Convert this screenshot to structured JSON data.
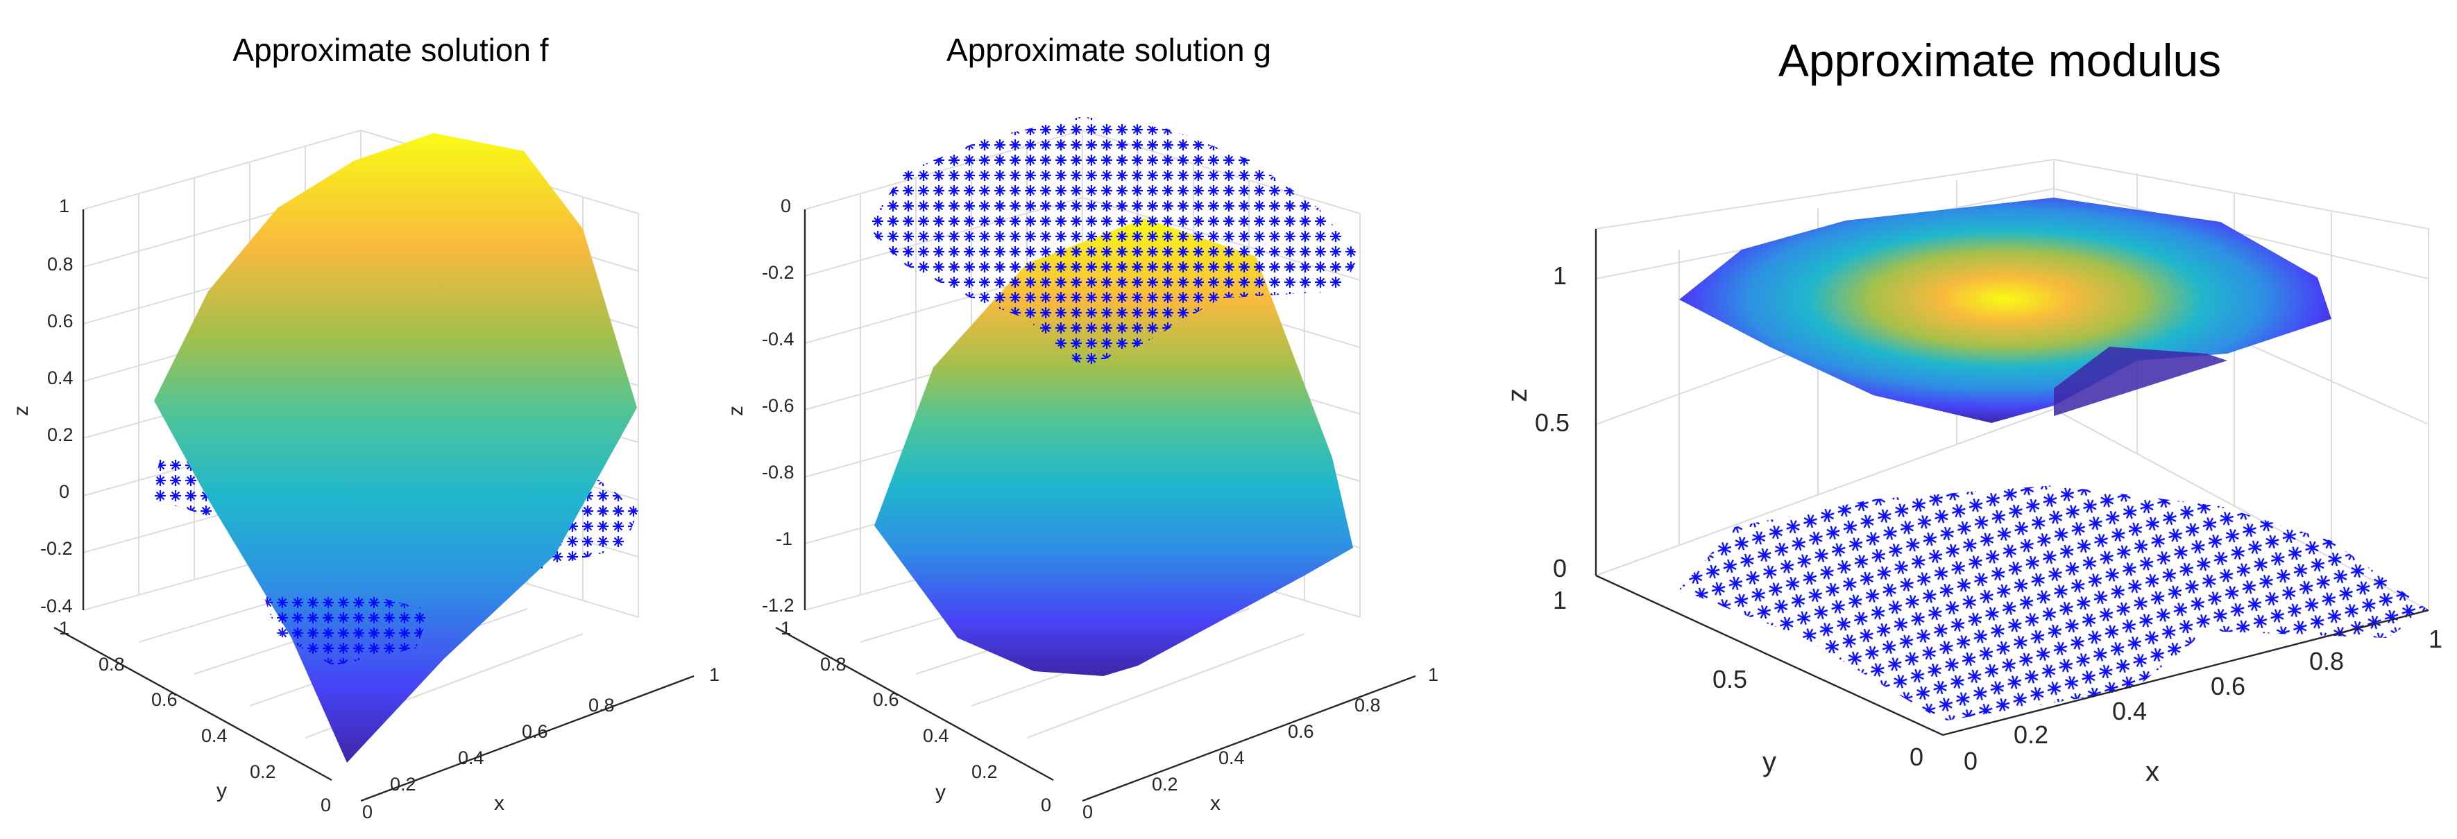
{
  "colors": {
    "marker": "#0000ff",
    "grid": "#dcdcdc",
    "axis": "#262626",
    "colormap": [
      "#3e26a8",
      "#4743f6",
      "#2f8fe4",
      "#1fb7cc",
      "#4dc49a",
      "#a5c04b",
      "#f8ba3d",
      "#f9fb15"
    ]
  },
  "chart_data": [
    {
      "type": "surface+scatter3d",
      "title": "Approximate solution f",
      "xlabel": "x",
      "ylabel": "y",
      "zlabel": "z",
      "xlim": [
        0,
        1
      ],
      "ylim": [
        0,
        1
      ],
      "zlim": [
        -0.4,
        1
      ],
      "x_ticks": [
        "0",
        "0.2",
        "0.4",
        "0.6",
        "0.8",
        "1"
      ],
      "y_ticks": [
        "0",
        "0.2",
        "0.4",
        "0.6",
        "0.8",
        "1"
      ],
      "z_ticks": [
        "-0.4",
        "-0.2",
        "0",
        "0.2",
        "0.4",
        "0.6",
        "0.8",
        "1"
      ],
      "surface": {
        "colormap": "parula",
        "z_min": -0.4,
        "z_max": 1.0
      },
      "scatter": {
        "marker": "*",
        "color": "#0000ff",
        "z": 0
      },
      "grid": true
    },
    {
      "type": "surface+scatter3d",
      "title": "Approximate solution g",
      "xlabel": "x",
      "ylabel": "y",
      "zlabel": "z",
      "xlim": [
        0,
        1
      ],
      "ylim": [
        0,
        1
      ],
      "zlim": [
        -1.2,
        0
      ],
      "x_ticks": [
        "0",
        "0.2",
        "0.4",
        "0.6",
        "0.8",
        "1"
      ],
      "y_ticks": [
        "0",
        "0.2",
        "0.4",
        "0.6",
        "0.8",
        "1"
      ],
      "z_ticks": [
        "-1.2",
        "-1",
        "-0.8",
        "-0.6",
        "-0.4",
        "-0.2",
        "0"
      ],
      "surface": {
        "colormap": "parula",
        "z_min": -1.15,
        "z_max": -0.05
      },
      "scatter": {
        "marker": "*",
        "color": "#0000ff",
        "z": 0
      },
      "grid": true
    },
    {
      "type": "surface+scatter3d",
      "title": "Approximate modulus",
      "xlabel": "x",
      "ylabel": "y",
      "zlabel": "z",
      "xlim": [
        0,
        1
      ],
      "ylim": [
        0,
        1
      ],
      "zlim": [
        0,
        1.2
      ],
      "x_ticks": [
        "0",
        "0.2",
        "0.4",
        "0.6",
        "0.8",
        "1"
      ],
      "y_ticks": [
        "0",
        "0.5",
        "1"
      ],
      "z_ticks": [
        "0",
        "0.5",
        "1"
      ],
      "surface": {
        "colormap": "parula",
        "z": 1,
        "peak": "center"
      },
      "scatter": {
        "marker": "*",
        "color": "#0000ff",
        "z": 0
      },
      "grid": true
    }
  ]
}
